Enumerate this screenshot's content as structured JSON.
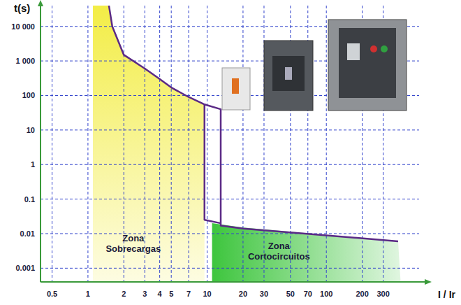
{
  "chart_data": {
    "type": "line",
    "x_label": "I / Ir",
    "y_label": "t(s)",
    "log": true,
    "grid": true,
    "xlim": [
      0.4,
      600
    ],
    "ylim": [
      0.0004,
      40000
    ],
    "xticks": [
      0.5,
      1,
      2,
      3,
      4,
      5,
      7,
      10,
      20,
      30,
      50,
      70,
      100,
      200,
      300
    ],
    "yticks": [
      {
        "value": 10000,
        "label": "10 000"
      },
      {
        "value": 1000,
        "label": "1 000"
      },
      100,
      10,
      1,
      0.1,
      0.01,
      0.001
    ],
    "series": [
      {
        "type": "area",
        "color": "#f2ec3c",
        "x": [
          1.1,
          1.1,
          1.5,
          1.6,
          2,
          3,
          4,
          5,
          7,
          9,
          9.5,
          9.5
        ],
        "values": [
          0.0004,
          40000,
          40000,
          10000,
          1500,
          600,
          300,
          170,
          90,
          60,
          55,
          0.0004
        ]
      },
      {
        "type": "area",
        "color": "#33c233",
        "x": [
          11,
          11,
          20,
          400,
          420,
          420
        ],
        "values": [
          0.0004,
          0.02,
          0.015,
          0.006,
          0.0004,
          0.0004
        ]
      },
      {
        "type": "line",
        "color": "#5b2a86",
        "x": [
          1.5,
          1.6,
          2,
          3,
          4,
          5,
          7,
          9,
          9.5,
          9.5,
          13
        ],
        "values": [
          40000,
          10000,
          1500,
          600,
          300,
          170,
          90,
          60,
          55,
          0.025,
          0.02
        ]
      },
      {
        "type": "line",
        "color": "#5b2a86",
        "x": [
          9.5,
          13,
          13,
          20,
          400
        ],
        "values": [
          55,
          40,
          0.017,
          0.014,
          0.006
        ]
      }
    ],
    "annotations": [
      {
        "text": [
          "Zona",
          "Sobrecargas"
        ],
        "x": 2.4,
        "y": 0.005
      },
      {
        "text": [
          "Zona",
          "Cortocircuitos"
        ],
        "x": 40,
        "y": 0.003
      }
    ]
  }
}
